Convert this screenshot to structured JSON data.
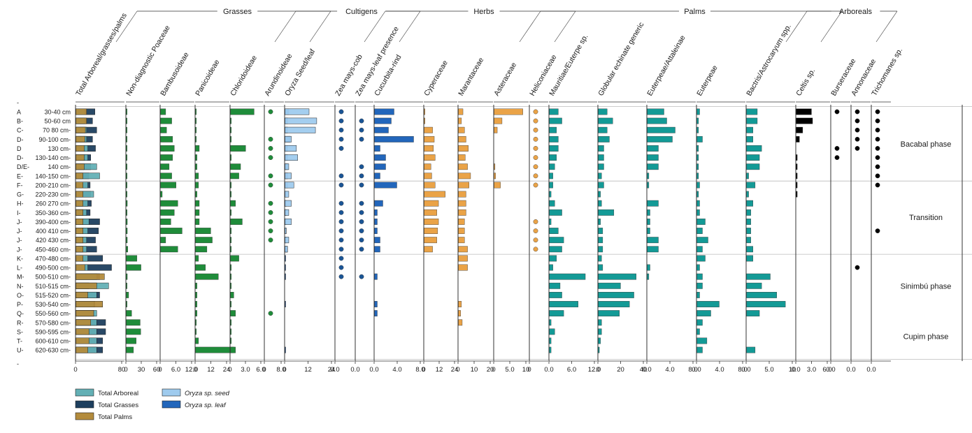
{
  "chart_data": {
    "type": "bar",
    "orientation": "horizontal",
    "title": "",
    "colors": {
      "arboreal": "#63b0b5",
      "grasses": "#1d3f5e",
      "palms": "#b38b3c",
      "grass_green": "#1f8c3a",
      "oryza_seed": "#9fcbee",
      "oryza_leaf": "#2266bb",
      "zea_dot": "#1a5596",
      "herb_orange": "#eaa347",
      "palm_teal": "#139a96",
      "arboreal_black": "#000000",
      "axis": "#333333",
      "guide": "#bbbbbb"
    },
    "samples": [
      {
        "zone": "A",
        "depth": "30-40 cm"
      },
      {
        "zone": "B-",
        "depth": "50-60 cm"
      },
      {
        "zone": "C-",
        "depth": "70 80 cm-"
      },
      {
        "zone": "D-",
        "depth": "90-100 cm-"
      },
      {
        "zone": "D",
        "depth": "130 cm-"
      },
      {
        "zone": "D-",
        "depth": "130-140 cm-"
      },
      {
        "zone": "D/E-",
        "depth": "140 cm-"
      },
      {
        "zone": "E-",
        "depth": "140-150 cm-"
      },
      {
        "zone": "F-",
        "depth": "200-210 cm-"
      },
      {
        "zone": "G-",
        "depth": "220-230 cm-"
      },
      {
        "zone": "H-",
        "depth": "260 270 cm-"
      },
      {
        "zone": "I-",
        "depth": "350-360 cm-"
      },
      {
        "zone": "J-",
        "depth": "390-400 cm-"
      },
      {
        "zone": "J-",
        "depth": "400 410 cm-"
      },
      {
        "zone": "J-",
        "depth": "420 430 cm-"
      },
      {
        "zone": "J-",
        "depth": "450-460 cm-"
      },
      {
        "zone": "K-",
        "depth": "470-480 cm-"
      },
      {
        "zone": "L-",
        "depth": "490-500 cm-"
      },
      {
        "zone": "M-",
        "depth": "500-510 cm-"
      },
      {
        "zone": "N-",
        "depth": "510-515 cm-"
      },
      {
        "zone": "O-",
        "depth": "515-520 cm-"
      },
      {
        "zone": "P-",
        "depth": "530-540 cm-"
      },
      {
        "zone": "Q-",
        "depth": "550-560 cm-"
      },
      {
        "zone": "R-",
        "depth": "570-580 cm-"
      },
      {
        "zone": "S-",
        "depth": "590-595 cm-"
      },
      {
        "zone": "T-",
        "depth": "600-610 cm-"
      },
      {
        "zone": "U-",
        "depth": "620-630 cm-"
      }
    ],
    "phases": [
      {
        "name": "Bacabal phase",
        "from": 0,
        "to": 7
      },
      {
        "name": "Transition",
        "from": 8,
        "to": 15
      },
      {
        "name": "Sinimbú phase",
        "from": 16,
        "to": 22
      },
      {
        "name": "Cupim phase",
        "from": 23,
        "to": 26
      }
    ],
    "groups": [
      {
        "name": "Grasses",
        "first": 1,
        "last": 6
      },
      {
        "name": "Cultigens",
        "first": 6,
        "last": 9
      },
      {
        "name": "Herbs",
        "first": 9,
        "last": 13
      },
      {
        "name": "Palms",
        "first": 13,
        "last": 19
      },
      {
        "name": "Arboreals",
        "first": 19,
        "last": 21
      }
    ],
    "columns": [
      {
        "label": "Total Arboreal/grasses/palms",
        "kind": "stack",
        "ticks": [
          "0",
          "80"
        ],
        "xmax": 80,
        "series": [
          {
            "name": "Total Grasses",
            "color": "grasses",
            "values": [
              32,
              28,
              35,
              28,
              33,
              25,
              25,
              22,
              24,
              25,
              26,
              24,
              40,
              38,
              33,
              35,
              45,
              60,
              40,
              22,
              40,
              32,
              30,
              50,
              50,
              45,
              45
            ]
          },
          {
            "name": "Total Arboreal",
            "color": "arboreal",
            "values": [
              15,
              15,
              18,
              18,
              20,
              20,
              35,
              40,
              20,
              30,
              20,
              18,
              22,
              20,
              18,
              18,
              20,
              20,
              35,
              55,
              35,
              30,
              35,
              35,
              35,
              35,
              35
            ]
          },
          {
            "name": "Total Palms",
            "color": "palms",
            "values": [
              18,
              18,
              16,
              15,
              14,
              14,
              14,
              12,
              12,
              12,
              12,
              12,
              12,
              12,
              12,
              12,
              12,
              15,
              48,
              35,
              20,
              45,
              30,
              25,
              22,
              22,
              20
            ]
          }
        ]
      },
      {
        "label": "Non-diagnostic Poaceae",
        "kind": "bar",
        "color": "grass_green",
        "ticks": [
          "0",
          "30",
          "60"
        ],
        "xmax": 120,
        "values": [
          1,
          2,
          2,
          2,
          3,
          3,
          2,
          2,
          2,
          2,
          4,
          3,
          4,
          4,
          4,
          6,
          40,
          55,
          4,
          3,
          9,
          3,
          20,
          52,
          54,
          37,
          27
        ]
      },
      {
        "label": "Bambusoideae",
        "kind": "bar",
        "color": "grass_green",
        "ticks": [
          "0",
          "6.0",
          "12.0"
        ],
        "xmax": 19,
        "values": [
          3,
          6.5,
          3.5,
          7,
          8,
          7,
          5,
          6.5,
          9,
          1,
          10,
          8,
          6,
          12.5,
          3,
          10,
          0,
          0,
          0,
          0,
          0,
          0,
          0,
          0,
          0,
          0,
          0
        ]
      },
      {
        "label": "Panicoideae",
        "kind": "bar",
        "color": "grass_green",
        "ticks": [
          "0",
          "12",
          "24"
        ],
        "xmax": 43,
        "values": [
          1,
          1,
          1,
          1,
          5,
          2,
          2,
          4,
          4,
          2,
          5,
          5,
          5,
          20,
          22,
          15,
          4,
          13,
          30,
          2,
          2,
          2,
          2,
          1,
          1,
          4,
          50
        ]
      },
      {
        "label": "Chloridoideae",
        "kind": "bar",
        "color": "grass_green",
        "ticks": [
          "0",
          "3.0",
          "6.0"
        ],
        "xmax": 9.5,
        "values": [
          7,
          0.2,
          0.2,
          0.2,
          4.5,
          0.2,
          3,
          2.5,
          0.2,
          0.2,
          1.5,
          0.2,
          3.5,
          0.2,
          0.2,
          0.2,
          2.5,
          0.2,
          0.2,
          0.2,
          1,
          0.2,
          1.5,
          0.2,
          0.2,
          0.2,
          1.5
        ]
      },
      {
        "label": "Arundinoideae",
        "kind": "dot",
        "color": "grass_green",
        "ticks": [
          "0",
          "8.0"
        ],
        "values": [
          1,
          0,
          0,
          1,
          1,
          1,
          0,
          1,
          1,
          0,
          1,
          1,
          1,
          1,
          1,
          0,
          0,
          0,
          0,
          0,
          0,
          0,
          1,
          0,
          0,
          0,
          0
        ]
      },
      {
        "label": "Oryza Seed/leaf",
        "kind": "stack",
        "ticks": [
          "0",
          "12",
          "24"
        ],
        "xmax": 38,
        "series": [
          {
            "name": "Oryza sp. leaf",
            "color": "oryza_leaf",
            "values": [
              3,
              2,
              2,
              4,
              2,
              2,
              2,
              2,
              2,
              1,
              1,
              1,
              1,
              1,
              1,
              2,
              0.5,
              0.3,
              0.3,
              0,
              0,
              0.3,
              0,
              0,
              0,
              0,
              0.5
            ]
          },
          {
            "name": "Oryza sp. seed",
            "color": "oryza_seed",
            "values": [
              19,
              25,
              24,
              5,
              9,
              10,
              3,
              5,
              7,
              3,
              5,
              3,
              5,
              1,
              3,
              2,
              0,
              0,
              0,
              0,
              0,
              0,
              0,
              0,
              0,
              0,
              0
            ]
          }
        ]
      },
      {
        "label": "Zea mays-cob",
        "kind": "dot",
        "color": "zea_dot",
        "ticks": [
          "0.0"
        ],
        "values": [
          1,
          1,
          1,
          1,
          1,
          0,
          0,
          1,
          1,
          0,
          1,
          1,
          1,
          1,
          1,
          1,
          1,
          1,
          1,
          0,
          0,
          0,
          0,
          0,
          0,
          0,
          0
        ]
      },
      {
        "label": "Zea mays-leaf presence",
        "kind": "dot",
        "color": "zea_dot",
        "ticks": [
          "0.0"
        ],
        "values": [
          0,
          1,
          1,
          1,
          0,
          0,
          1,
          1,
          1,
          0,
          1,
          1,
          1,
          1,
          1,
          1,
          0,
          0,
          1,
          0,
          0,
          0,
          0,
          0,
          0,
          0,
          0
        ]
      },
      {
        "label": "Cucurbita-rind",
        "kind": "bar",
        "color": "oryza_leaf",
        "ticks": [
          "0.0",
          "4.0",
          "8.0"
        ],
        "xmax": 8.5,
        "values": [
          3.5,
          3,
          2.5,
          7,
          1,
          2,
          2,
          1,
          4,
          0,
          1.5,
          0.5,
          0.5,
          0.5,
          1,
          1,
          0,
          0,
          0.5,
          0,
          0,
          0.5,
          0.5,
          0,
          0,
          0,
          0
        ]
      },
      {
        "label": "Cyperaceae",
        "kind": "bar",
        "color": "herb_orange",
        "ticks": [
          "0",
          "12",
          "24"
        ],
        "xmax": 38,
        "values": [
          1,
          1,
          10,
          12,
          11,
          13,
          8,
          9,
          13,
          25,
          17,
          15,
          17,
          16,
          15,
          10,
          0,
          0,
          0,
          0,
          0,
          0,
          0,
          0,
          0,
          0,
          0
        ]
      },
      {
        "label": "Marantaceae",
        "kind": "bar",
        "color": "herb_orange",
        "ticks": [
          "0",
          "10",
          "20"
        ],
        "xmax": 44,
        "values": [
          6,
          4,
          8,
          10,
          13,
          9,
          12,
          16,
          14,
          10,
          10,
          10,
          8,
          8,
          8,
          12,
          12,
          12,
          0,
          0,
          0,
          4,
          3,
          5,
          0,
          0,
          0
        ]
      },
      {
        "label": "Asteraceae",
        "kind": "bar",
        "color": "herb_orange",
        "ticks": [
          "0",
          "5.0",
          "10"
        ],
        "xmax": 10.5,
        "values": [
          9,
          2.5,
          1,
          0,
          0,
          0,
          0.3,
          0.5,
          2,
          0,
          0,
          0,
          0,
          0,
          0,
          0,
          0,
          0,
          0,
          0,
          0,
          0,
          0,
          0,
          0,
          0,
          0
        ]
      },
      {
        "label": "Heliconiaceae",
        "kind": "dot",
        "color": "herb_orange",
        "ticks": [
          "0"
        ],
        "values": [
          1,
          1,
          1,
          1,
          1,
          1,
          1,
          1,
          1,
          0,
          0,
          0,
          1,
          1,
          1,
          1,
          0,
          0,
          0,
          0,
          0,
          0,
          0,
          0,
          0,
          0,
          0
        ]
      },
      {
        "label": "Mauritiae/Euterpe sp.",
        "kind": "bar",
        "color": "palm_teal",
        "ticks": [
          "0.0",
          "6.0",
          "12.0"
        ],
        "xmax": 13,
        "values": [
          2.5,
          3.5,
          2,
          2.5,
          2.5,
          2,
          1.5,
          1,
          1,
          0.5,
          1.5,
          3.5,
          0.5,
          2.5,
          4,
          3.5,
          2,
          1,
          10,
          3,
          3.5,
          8,
          4,
          0.5,
          1.5,
          0.5,
          0.5
        ]
      },
      {
        "label": "Globular echinate generic",
        "kind": "bar",
        "color": "palm_teal",
        "ticks": [
          "0",
          "20",
          "40"
        ],
        "xmax": 42,
        "values": [
          8,
          13,
          8,
          10,
          5,
          5,
          5,
          3,
          5,
          2,
          3,
          14,
          2,
          4,
          4,
          4,
          3,
          4,
          34,
          20,
          32,
          28,
          19,
          3,
          3,
          2,
          1
        ]
      },
      {
        "label": "Euterpeae/Attaleinae",
        "kind": "bar",
        "color": "palm_teal",
        "ticks": [
          "0.0",
          "4.0",
          "8.0"
        ],
        "xmax": 8.5,
        "values": [
          3,
          3.5,
          5,
          4.5,
          2,
          2,
          2,
          0.3,
          0.3,
          0,
          2,
          0.5,
          0.5,
          0.5,
          2,
          2,
          0,
          0.5,
          0.3,
          0,
          0,
          0,
          0,
          0,
          0,
          0,
          0
        ]
      },
      {
        "label": "Euterpeae",
        "kind": "bar",
        "color": "palm_teal",
        "ticks": [
          "0.0",
          "4.0",
          "8.0"
        ],
        "xmax": 8.5,
        "values": [
          0.5,
          0.3,
          0.3,
          1,
          0.3,
          0.3,
          0.3,
          0.3,
          0.5,
          0.3,
          0.5,
          0.5,
          1.5,
          1,
          2,
          1,
          1.5,
          0.5,
          1,
          1,
          0.5,
          4,
          2.5,
          1,
          0.5,
          1.8,
          1
        ]
      },
      {
        "label": "Bactris/Astrocaryum spp.",
        "kind": "bar",
        "color": "palm_teal",
        "ticks": [
          "0.0",
          "5.0",
          "10"
        ],
        "xmax": 11,
        "values": [
          2.5,
          2.5,
          1.5,
          1.5,
          3.5,
          3,
          3,
          0.5,
          2,
          0.5,
          1.5,
          1,
          1,
          1,
          1,
          1.5,
          1.5,
          0,
          5.5,
          3.5,
          7,
          9,
          3,
          0,
          0,
          0,
          2
        ]
      },
      {
        "label": "Celtis sp.",
        "kind": "bar",
        "color": "arboreal_black",
        "ticks": [
          "0.0",
          "3.0",
          "6.0"
        ],
        "xmax": 6,
        "values": [
          2.8,
          3,
          1.2,
          0.6,
          0,
          0.2,
          0.2,
          0.2,
          0.2,
          0.2,
          0,
          0,
          0,
          0,
          0,
          0,
          0,
          0,
          0,
          0,
          0,
          0,
          0,
          0,
          0,
          0,
          0
        ]
      },
      {
        "label": "Burseraceae",
        "kind": "dot",
        "color": "arboreal_black",
        "ticks": [
          "0.0"
        ],
        "values": [
          1,
          0,
          0,
          0,
          1,
          1,
          0,
          0,
          0,
          0,
          0,
          0,
          0,
          0,
          0,
          0,
          0,
          0,
          0,
          0,
          0,
          0,
          0,
          0,
          0,
          0,
          0
        ]
      },
      {
        "label": "Annonaceae",
        "kind": "dot",
        "color": "arboreal_black",
        "ticks": [
          "0.0"
        ],
        "values": [
          1,
          1,
          1,
          1,
          1,
          0,
          0,
          0,
          0,
          0,
          0,
          0,
          0,
          0,
          0,
          0,
          0,
          1,
          0,
          0,
          0,
          0,
          0,
          0,
          0,
          0,
          0
        ]
      },
      {
        "label": "Trichomanes sp.",
        "kind": "dot",
        "color": "arboreal_black",
        "ticks": [
          "0.0"
        ],
        "values": [
          1,
          1,
          1,
          1,
          1,
          1,
          1,
          1,
          1,
          0,
          0,
          0,
          0,
          1,
          0,
          0,
          0,
          0,
          0,
          0,
          0,
          0,
          0,
          0,
          0,
          0,
          0
        ]
      }
    ],
    "legend": [
      {
        "label": "Total Arboreal",
        "color": "arboreal",
        "italic": false
      },
      {
        "label": "Total Grasses",
        "color": "grasses",
        "italic": false
      },
      {
        "label": "Total Palms",
        "color": "palms",
        "italic": false
      },
      {
        "label": "Oryza sp. seed",
        "color": "oryza_seed",
        "italic": true
      },
      {
        "label": "Oryza sp. leaf",
        "color": "oryza_leaf",
        "italic": true
      }
    ]
  }
}
